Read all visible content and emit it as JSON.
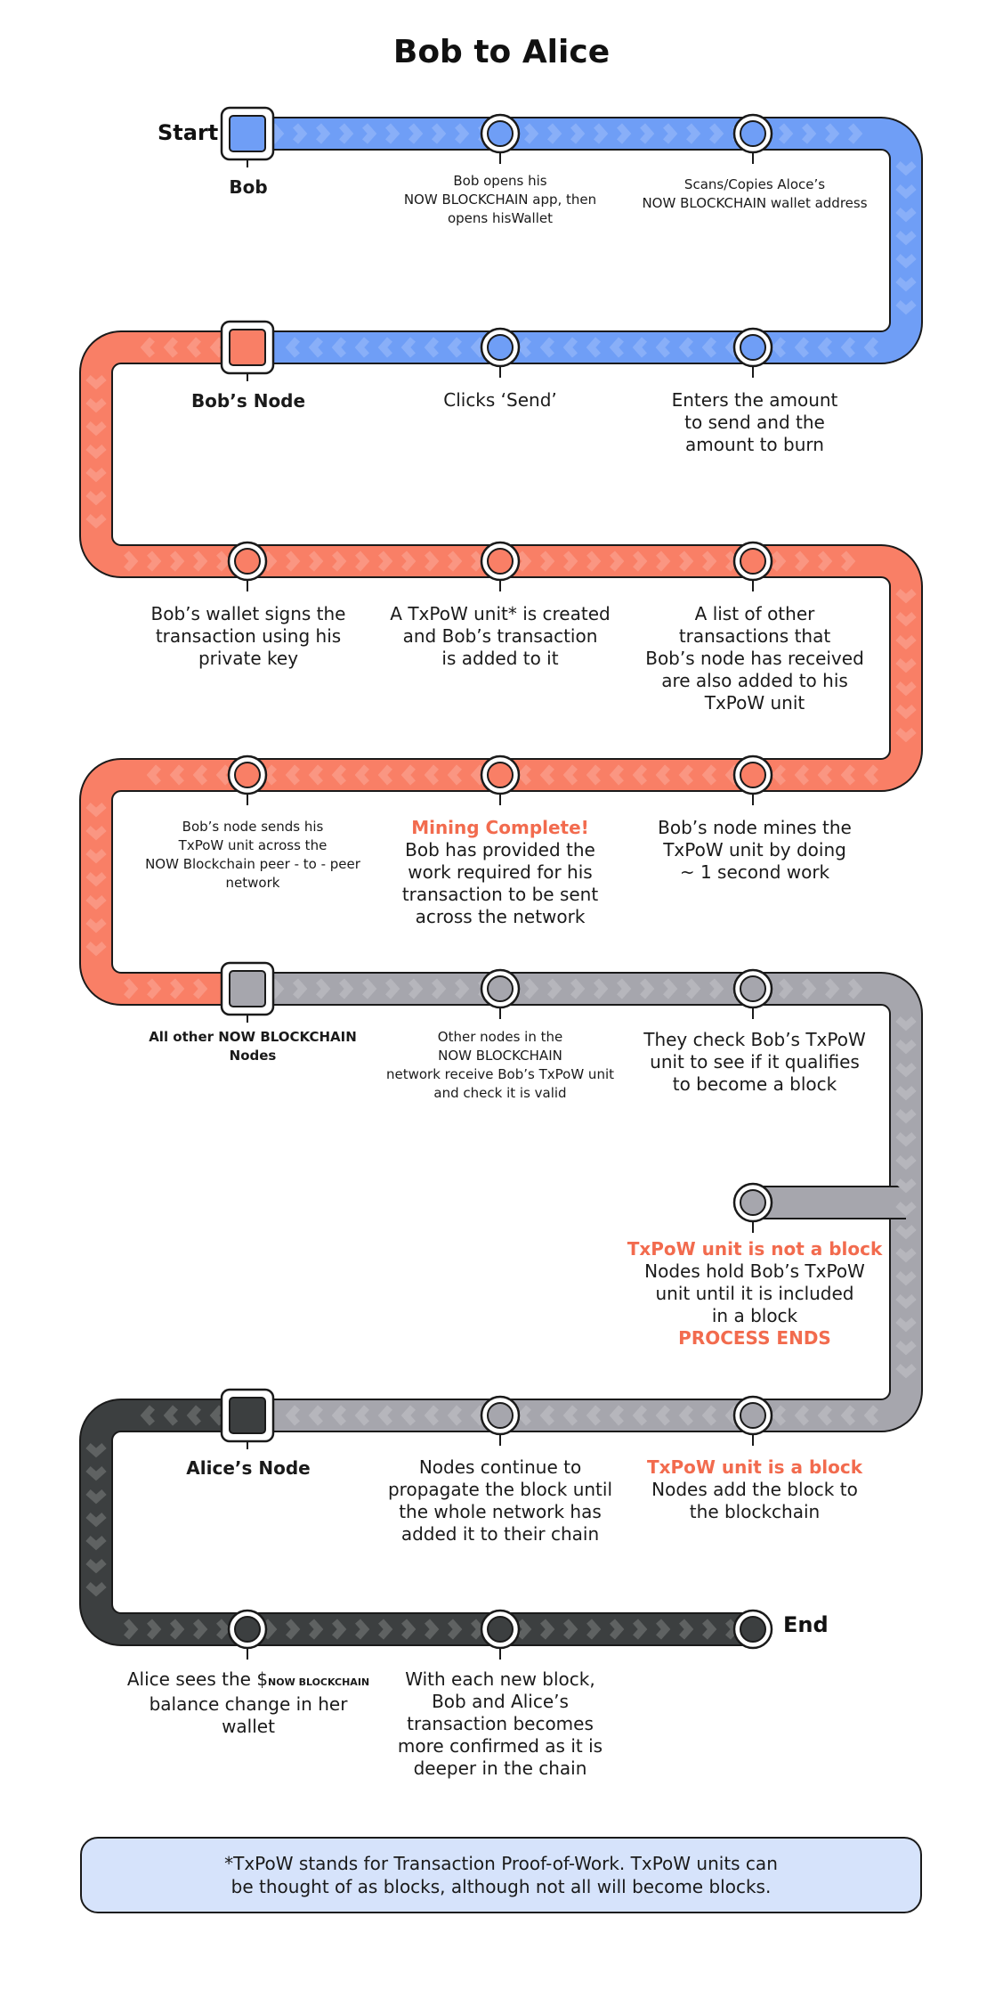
{
  "title": "Bob to Alice",
  "start_label": "Start",
  "end_label": "End",
  "colors": {
    "blue": "#6f9ef6",
    "red": "#f97f66",
    "gray": "#a6a6ad",
    "dark": "#3c3f40",
    "accent_text": "#f26b4e",
    "footnote_bg": "#d6e3fb"
  },
  "nodes": {
    "bob": "Bob",
    "bobs_node": "Bob’s Node",
    "other_nodes": [
      "All other NOW BLOCKCHAIN",
      "Nodes"
    ],
    "alices_node": "Alice’s Node"
  },
  "steps": {
    "s1": [
      "Bob opens his",
      "NOW BLOCKCHAIN app, then",
      "opens hisWallet"
    ],
    "s2": [
      "Scans/Copies Aloce’s",
      "NOW BLOCKCHAIN wallet address"
    ],
    "s3": [
      "Clicks ‘Send’"
    ],
    "s4": [
      "Enters the amount",
      "to send and the",
      "amount to burn"
    ],
    "s5": [
      "Bob’s wallet signs the",
      "transaction using his",
      "private key"
    ],
    "s6": [
      "A TxPoW unit* is created",
      "and Bob’s transaction",
      "is added to it"
    ],
    "s7": [
      "A list of other",
      "transactions that",
      "Bob’s node has received",
      "are also added to his",
      "TxPoW unit"
    ],
    "s8": [
      "Bob’s node sends his",
      "TxPoW unit across the",
      "NOW Blockchain peer - to - peer",
      "network"
    ],
    "s9_head": "Mining Complete!",
    "s9": [
      "Bob has provided the",
      "work required for his",
      "transaction to be sent",
      "across the network"
    ],
    "s10": [
      "Bob’s node mines the",
      "TxPoW unit by doing",
      "~ 1 second work"
    ],
    "s11": [
      "Other nodes in the",
      "NOW BLOCKCHAIN",
      "network receive Bob’s TxPoW unit",
      "and check it is valid"
    ],
    "s12": [
      "They check Bob’s TxPoW",
      "unit to see if it qualifies",
      "to become a block"
    ],
    "s13_head": "TxPoW unit is not a block",
    "s13": [
      "Nodes hold Bob’s TxPoW",
      "unit until it is included",
      "in a block"
    ],
    "s13_tail": "PROCESS ENDS",
    "s14": [
      "Nodes continue to",
      "propagate the block until",
      "the whole network has",
      "added it to their chain"
    ],
    "s15_head": "TxPoW unit is a block",
    "s15": [
      "Nodes add the block to",
      "the blockchain"
    ],
    "s16_a": "Alice sees the $",
    "s16_b": "NOW BLOCKCHAIN",
    "s16": [
      "balance change in her",
      "wallet"
    ],
    "s17": [
      "With each new block,",
      "Bob and Alice’s",
      "transaction becomes",
      "more confirmed as it is",
      "deeper in the chain"
    ]
  },
  "footnote": [
    "*TxPoW stands for Transaction Proof-of-Work. TxPoW units can",
    "be thought of as blocks, although not all will become blocks."
  ]
}
